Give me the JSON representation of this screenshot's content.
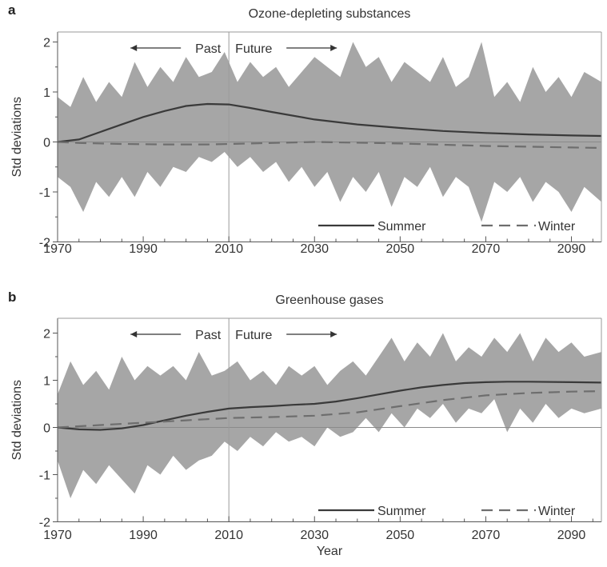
{
  "chart_data": [
    {
      "type": "area",
      "panel_label": "a",
      "title": "Ozone-depleting substances",
      "ylabel": "Std deviations",
      "xlabel": "",
      "xlim": [
        1970,
        2097
      ],
      "ylim": [
        -2,
        2.2
      ],
      "xticks": [
        "1970",
        "1990",
        "2010",
        "2030",
        "2050",
        "2070",
        "2090"
      ],
      "yticks": [
        "2",
        "1",
        "0",
        "-1",
        "-2"
      ],
      "divider_year": 2010,
      "past_label": "Past",
      "future_label": "Future",
      "series": [
        {
          "name": "Summer",
          "style": "solid",
          "x": [
            1970,
            1975,
            1980,
            1985,
            1990,
            1995,
            2000,
            2005,
            2010,
            2015,
            2020,
            2030,
            2040,
            2050,
            2060,
            2070,
            2080,
            2090,
            2097
          ],
          "values": [
            0,
            0.05,
            0.2,
            0.35,
            0.5,
            0.62,
            0.72,
            0.76,
            0.75,
            0.68,
            0.6,
            0.45,
            0.35,
            0.28,
            0.22,
            0.18,
            0.15,
            0.13,
            0.12
          ]
        },
        {
          "name": "Winter",
          "style": "dashed",
          "x": [
            1970,
            1975,
            1985,
            1995,
            2005,
            2010,
            2020,
            2030,
            2050,
            2070,
            2090,
            2097
          ],
          "values": [
            0,
            -0.02,
            -0.04,
            -0.05,
            -0.05,
            -0.04,
            -0.02,
            0,
            -0.03,
            -0.08,
            -0.11,
            -0.12
          ]
        }
      ],
      "envelope": {
        "x": [
          1970,
          1973,
          1976,
          1979,
          1982,
          1985,
          1988,
          1991,
          1994,
          1997,
          2000,
          2003,
          2006,
          2009,
          2012,
          2015,
          2018,
          2021,
          2024,
          2027,
          2030,
          2033,
          2036,
          2039,
          2042,
          2045,
          2048,
          2051,
          2054,
          2057,
          2060,
          2063,
          2066,
          2069,
          2072,
          2075,
          2078,
          2081,
          2084,
          2087,
          2090,
          2093,
          2097
        ],
        "upper": [
          0.9,
          0.7,
          1.3,
          0.8,
          1.2,
          0.9,
          1.6,
          1.1,
          1.5,
          1.2,
          1.7,
          1.3,
          1.4,
          1.8,
          1.2,
          1.6,
          1.3,
          1.5,
          1.1,
          1.4,
          1.7,
          1.5,
          1.3,
          2.0,
          1.5,
          1.7,
          1.2,
          1.6,
          1.4,
          1.2,
          1.7,
          1.1,
          1.3,
          2.0,
          0.9,
          1.2,
          0.8,
          1.5,
          1.0,
          1.3,
          0.9,
          1.4,
          1.2
        ],
        "lower": [
          -0.7,
          -0.9,
          -1.4,
          -0.8,
          -1.1,
          -0.7,
          -1.1,
          -0.6,
          -0.9,
          -0.5,
          -0.6,
          -0.3,
          -0.4,
          -0.2,
          -0.5,
          -0.3,
          -0.6,
          -0.4,
          -0.8,
          -0.5,
          -0.9,
          -0.6,
          -1.2,
          -0.7,
          -1.0,
          -0.6,
          -1.3,
          -0.7,
          -0.9,
          -0.5,
          -1.1,
          -0.7,
          -0.9,
          -1.6,
          -0.8,
          -1.0,
          -0.7,
          -1.2,
          -0.8,
          -1.0,
          -1.4,
          -0.9,
          -1.2
        ]
      }
    },
    {
      "type": "area",
      "panel_label": "b",
      "title": "Greenhouse gases",
      "ylabel": "Std deviations",
      "xlabel": "Year",
      "xlim": [
        1970,
        2097
      ],
      "ylim": [
        -2,
        2.2
      ],
      "xticks": [
        "1970",
        "1990",
        "2010",
        "2030",
        "2050",
        "2070",
        "2090"
      ],
      "yticks": [
        "2",
        "1",
        "0",
        "-1",
        "-2"
      ],
      "divider_year": 2010,
      "past_label": "Past",
      "future_label": "Future",
      "series": [
        {
          "name": "Summer",
          "style": "solid",
          "x": [
            1970,
            1975,
            1980,
            1985,
            1990,
            1995,
            2000,
            2005,
            2010,
            2015,
            2020,
            2025,
            2030,
            2035,
            2040,
            2045,
            2050,
            2055,
            2060,
            2065,
            2070,
            2075,
            2080,
            2090,
            2097
          ],
          "values": [
            0,
            -0.04,
            -0.05,
            -0.02,
            0.05,
            0.15,
            0.25,
            0.33,
            0.4,
            0.43,
            0.45,
            0.48,
            0.5,
            0.55,
            0.62,
            0.7,
            0.78,
            0.85,
            0.9,
            0.94,
            0.96,
            0.97,
            0.97,
            0.96,
            0.95
          ]
        },
        {
          "name": "Winter",
          "style": "dashed",
          "x": [
            1970,
            1980,
            1990,
            2000,
            2010,
            2020,
            2030,
            2040,
            2050,
            2060,
            2070,
            2080,
            2090,
            2097
          ],
          "values": [
            0,
            0.05,
            0.1,
            0.15,
            0.2,
            0.22,
            0.25,
            0.32,
            0.45,
            0.58,
            0.68,
            0.73,
            0.76,
            0.77
          ]
        }
      ],
      "envelope": {
        "x": [
          1970,
          1973,
          1976,
          1979,
          1982,
          1985,
          1988,
          1991,
          1994,
          1997,
          2000,
          2003,
          2006,
          2009,
          2012,
          2015,
          2018,
          2021,
          2024,
          2027,
          2030,
          2033,
          2036,
          2039,
          2042,
          2045,
          2048,
          2051,
          2054,
          2057,
          2060,
          2063,
          2066,
          2069,
          2072,
          2075,
          2078,
          2081,
          2084,
          2087,
          2090,
          2093,
          2097
        ],
        "upper": [
          0.7,
          1.4,
          0.9,
          1.2,
          0.8,
          1.5,
          1.0,
          1.3,
          1.1,
          1.3,
          1.0,
          1.6,
          1.1,
          1.2,
          1.4,
          1.0,
          1.2,
          0.9,
          1.3,
          1.1,
          1.3,
          0.9,
          1.2,
          1.4,
          1.1,
          1.5,
          1.9,
          1.4,
          1.8,
          1.5,
          2.0,
          1.4,
          1.7,
          1.5,
          1.9,
          1.6,
          2.0,
          1.4,
          1.9,
          1.6,
          1.8,
          1.5,
          1.6
        ],
        "lower": [
          -0.7,
          -1.5,
          -0.9,
          -1.2,
          -0.8,
          -1.1,
          -1.4,
          -0.8,
          -1.0,
          -0.6,
          -0.9,
          -0.7,
          -0.6,
          -0.3,
          -0.5,
          -0.2,
          -0.4,
          -0.1,
          -0.3,
          -0.2,
          -0.4,
          0.0,
          -0.2,
          -0.1,
          0.2,
          -0.1,
          0.3,
          0.0,
          0.4,
          0.2,
          0.5,
          0.1,
          0.4,
          0.3,
          0.6,
          -0.1,
          0.4,
          0.1,
          0.5,
          0.2,
          0.4,
          0.3,
          0.4
        ]
      }
    }
  ]
}
